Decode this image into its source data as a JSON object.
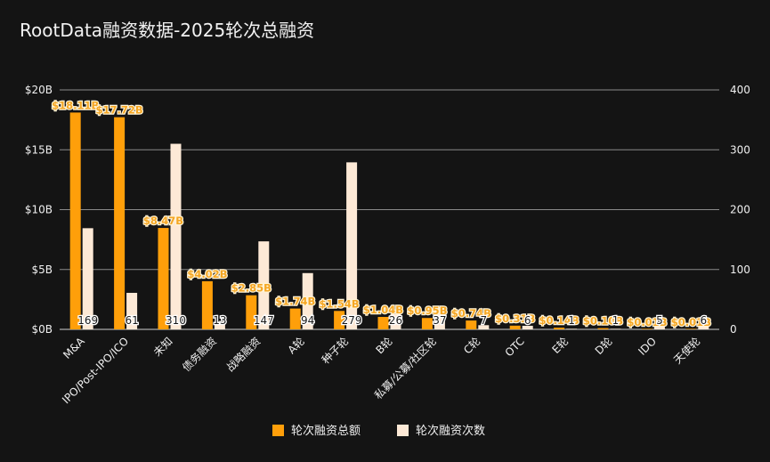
{
  "chart_data": {
    "type": "bar",
    "title": "RootData融资数据-2025轮次总融资",
    "categories": [
      "M&A",
      "IPO/Post-IPO/ICO",
      "未知",
      "债务融资",
      "战略融资",
      "A轮",
      "种子轮",
      "B轮",
      "私募/公募/社区轮",
      "C轮",
      "OTC",
      "E轮",
      "D轮",
      "IDO",
      "天使轮"
    ],
    "series": [
      {
        "name": "轮次融资总额",
        "axis": "left",
        "color": "#ff9f0a",
        "values": [
          18.11,
          17.72,
          8.47,
          4.02,
          2.85,
          1.74,
          1.54,
          1.04,
          0.95,
          0.74,
          0.31,
          0.14,
          0.1,
          0.01,
          0.01
        ],
        "labels": [
          "$18.11B",
          "$17.72B",
          "$8.47B",
          "$4.02B",
          "$2.85B",
          "$1.74B",
          "$1.54B",
          "$1.04B",
          "$0.95B",
          "$0.74B",
          "$0.31B",
          "$0.14B",
          "$0.10B",
          "$0.01B",
          "$0.01B"
        ]
      },
      {
        "name": "轮次融资次数",
        "axis": "right",
        "color": "#fde9d6",
        "values": [
          169,
          61,
          310,
          13,
          147,
          94,
          279,
          26,
          37,
          7,
          6,
          1,
          1,
          5,
          6
        ],
        "labels": [
          "169",
          "61",
          "310",
          "13",
          "147",
          "94",
          "279",
          "26",
          "37",
          "7",
          "6",
          "1",
          "1",
          "5",
          "6"
        ]
      }
    ],
    "y_left": {
      "ylim": [
        0,
        20
      ],
      "ticks": [
        0,
        5,
        10,
        15,
        20
      ],
      "tick_labels": [
        "$0B",
        "$5B",
        "$10B",
        "$15B",
        "$20B"
      ]
    },
    "y_right": {
      "ylim": [
        0,
        400
      ],
      "ticks": [
        0,
        100,
        200,
        300,
        400
      ],
      "tick_labels": [
        "0",
        "100",
        "200",
        "300",
        "400"
      ]
    },
    "grid": true,
    "legend": "bottom-center",
    "background": "#141414"
  }
}
